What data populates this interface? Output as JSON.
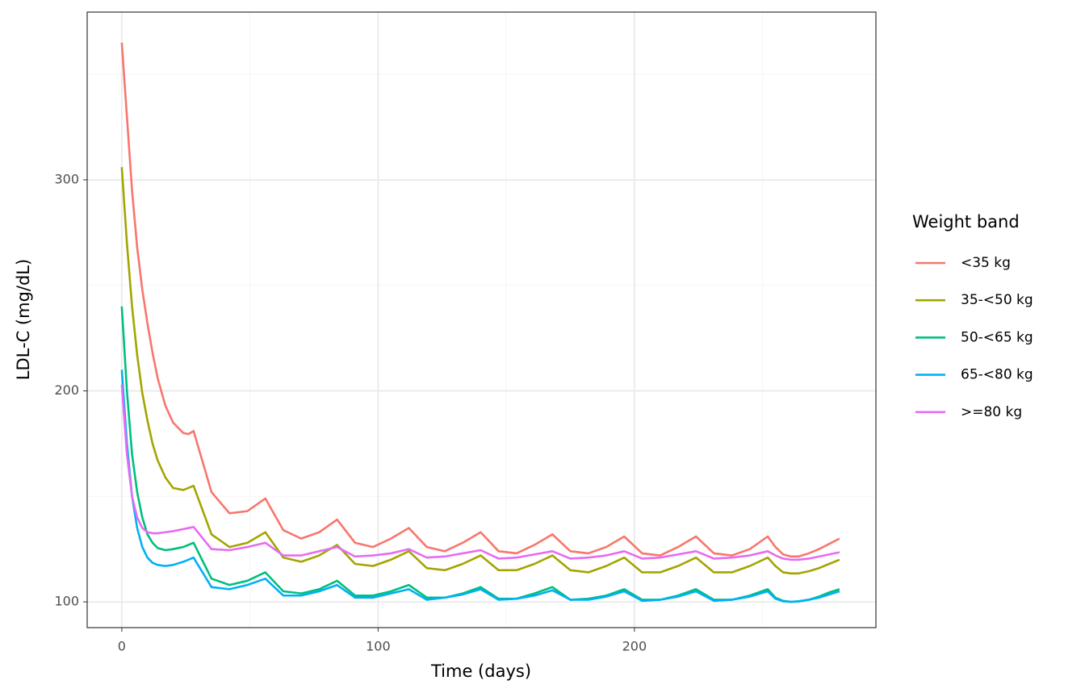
{
  "chart_data": {
    "type": "line",
    "xlabel": "Time (days)",
    "ylabel": "LDL-C (mg/dL)",
    "legend_title": "Weight band",
    "legend": "right",
    "grid": true,
    "minor_grid": true,
    "x": [
      0,
      2,
      4,
      6,
      8,
      10,
      12,
      14,
      17,
      20,
      24,
      26,
      28,
      35,
      42,
      49,
      56,
      63,
      70,
      77,
      84,
      91,
      98,
      105,
      112,
      119,
      126,
      133,
      140,
      147,
      154,
      161,
      168,
      175,
      182,
      189,
      196,
      203,
      210,
      217,
      224,
      231,
      238,
      245,
      252,
      255,
      258,
      261,
      264,
      268,
      272,
      276,
      280
    ],
    "xlim": [
      -13.5,
      294.2
    ],
    "xticks": [
      0,
      100,
      200
    ],
    "ylim": [
      87.8,
      379.5
    ],
    "yticks": [
      100,
      200,
      300
    ],
    "series": [
      {
        "name": "<35 kg",
        "color": "#F8766D",
        "values": [
          365,
          330,
          295,
          268,
          248,
          232,
          218,
          206,
          193,
          185,
          180,
          179.5,
          181,
          152,
          142,
          143,
          149,
          134,
          130,
          133,
          139,
          128,
          126,
          130,
          135,
          126,
          124,
          128,
          133,
          124,
          123,
          127,
          132,
          124,
          123,
          126,
          131,
          123,
          122,
          126,
          131,
          123,
          122,
          125,
          131,
          126,
          122.5,
          121.5,
          121.5,
          123,
          125,
          127.5,
          130
        ]
      },
      {
        "name": "35-<50 kg",
        "color": "#A3A500",
        "values": [
          306,
          270,
          240,
          217,
          199,
          186,
          175,
          167,
          159,
          154,
          153,
          154,
          155,
          132,
          126,
          128,
          133,
          121,
          119,
          122,
          127,
          118,
          117,
          120,
          124,
          116,
          115,
          118,
          122,
          115,
          115,
          118,
          122,
          115,
          114,
          117,
          121,
          114,
          114,
          117,
          121,
          114,
          114,
          117,
          121,
          117,
          114,
          113.5,
          113.5,
          114.5,
          116,
          118,
          120
        ]
      },
      {
        "name": "50-<65 kg",
        "color": "#00BF7D",
        "values": [
          240,
          200,
          170,
          152,
          140,
          132,
          128,
          125.5,
          124.5,
          125,
          126,
          127,
          128,
          111,
          108,
          110,
          114,
          105,
          104,
          106,
          110,
          103,
          103,
          105,
          108,
          102,
          102,
          104,
          107,
          101.5,
          101.5,
          104,
          107,
          101,
          101.5,
          103,
          106,
          101,
          101,
          103,
          106,
          101,
          101,
          103,
          106,
          102,
          100.5,
          100,
          100.3,
          101,
          102.5,
          104.5,
          106
        ]
      },
      {
        "name": "65-<80 kg",
        "color": "#00B0F6",
        "values": [
          210,
          175,
          150,
          135,
          126,
          121,
          118.5,
          117.5,
          117,
          117.5,
          119,
          120,
          121,
          107,
          106,
          108,
          111,
          103,
          103,
          105,
          108,
          102,
          102,
          104,
          106,
          101,
          102,
          103.5,
          106,
          101,
          101.5,
          103,
          105.5,
          101,
          101,
          102.5,
          105,
          100.5,
          101,
          102.5,
          105,
          100.5,
          101,
          102.5,
          105,
          101.5,
          100.3,
          100,
          100.2,
          101,
          102,
          103.5,
          105
        ]
      },
      {
        "name": ">=80 kg",
        "color": "#E76BF3",
        "values": [
          203,
          170,
          150,
          140,
          135,
          133,
          132.5,
          132.5,
          133,
          133.5,
          134.5,
          135,
          135.5,
          125,
          124.5,
          126,
          128,
          122,
          122,
          124,
          126,
          121.5,
          122,
          123,
          125,
          121,
          121.5,
          123,
          124.5,
          120.5,
          121,
          122.5,
          124,
          120.5,
          121,
          122,
          124,
          120.5,
          121,
          122.5,
          124,
          120.5,
          121,
          122,
          124,
          122,
          120.5,
          120,
          120,
          120.5,
          121.5,
          122.5,
          123.5
        ]
      }
    ]
  }
}
